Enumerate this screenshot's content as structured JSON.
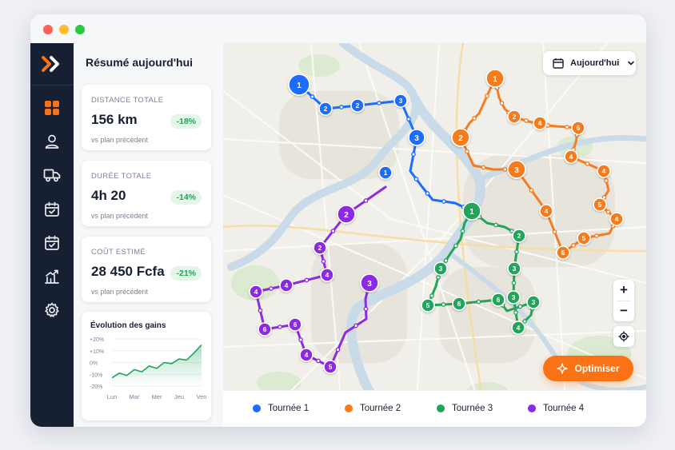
{
  "panel": {
    "title": "Résumé aujourd'hui",
    "stats": [
      {
        "label": "DISTANCE TOTALE",
        "value": "156 km",
        "change": "-18%",
        "note": "vs plan précédent"
      },
      {
        "label": "DURÉE TOTALE",
        "value": "4h 20",
        "change": "-14%",
        "note": "vs plan précédent"
      },
      {
        "label": "COÛT ESTIMÉ",
        "value": "28 450 Fcfa",
        "change": "-21%",
        "note": "vs plan précédent"
      }
    ]
  },
  "nav": {
    "icons": [
      "grid-icon",
      "user-icon",
      "truck-icon",
      "calendar-check-icon",
      "calendar-check-icon",
      "chart-icon",
      "gear-icon"
    ],
    "active_index": 0
  },
  "date_selector": {
    "label": "Aujourd'hui"
  },
  "optimize_button": {
    "label": "Optimiser"
  },
  "zoom": {
    "in": "+",
    "out": "−"
  },
  "legend": {
    "items": [
      {
        "label": "Tournée 1",
        "color": "#1a6dff"
      },
      {
        "label": "Tournée 2",
        "color": "#f57c1f"
      },
      {
        "label": "Tournée 3",
        "color": "#22a45a"
      },
      {
        "label": "Tournée 4",
        "color": "#8b2be2"
      }
    ]
  },
  "chart_data": {
    "type": "area",
    "title": "Évolution des gains",
    "categories": [
      "Lun",
      "Mar",
      "Mer",
      "Jeu",
      "Ven"
    ],
    "yticks": [
      "+20%",
      "+10%",
      "0%",
      "-10%",
      "-20%"
    ],
    "ylim": [
      -20,
      20
    ],
    "x": [
      0,
      0.33,
      0.66,
      1,
      1.33,
      1.66,
      2,
      2.33,
      2.66,
      3,
      3.33,
      3.66,
      4
    ],
    "values": [
      -13,
      -9,
      -11,
      -6,
      -8,
      -3,
      -5,
      0,
      -1,
      3,
      2,
      8,
      15
    ],
    "color": "#22a45a"
  },
  "routes": [
    {
      "name": "Tournée 1",
      "color": "#1a6dff",
      "stops": [
        "1",
        "2",
        "2",
        "3",
        "3",
        "1"
      ]
    },
    {
      "name": "Tournée 2",
      "color": "#f57c1f",
      "stops": [
        "1",
        "2",
        "4",
        "6",
        "2",
        "3",
        "4",
        "4",
        "5",
        "4",
        "4",
        "5",
        "6",
        "4"
      ]
    },
    {
      "name": "Tournée 3",
      "color": "#22a45a",
      "stops": [
        "1",
        "2",
        "3",
        "3",
        "3",
        "3",
        "5",
        "6",
        "6",
        "4"
      ]
    },
    {
      "name": "Tournée 4",
      "color": "#8b2be2",
      "stops": [
        "2",
        "2",
        "4",
        "4",
        "4",
        "6",
        "6",
        "4",
        "5",
        "3"
      ]
    }
  ]
}
